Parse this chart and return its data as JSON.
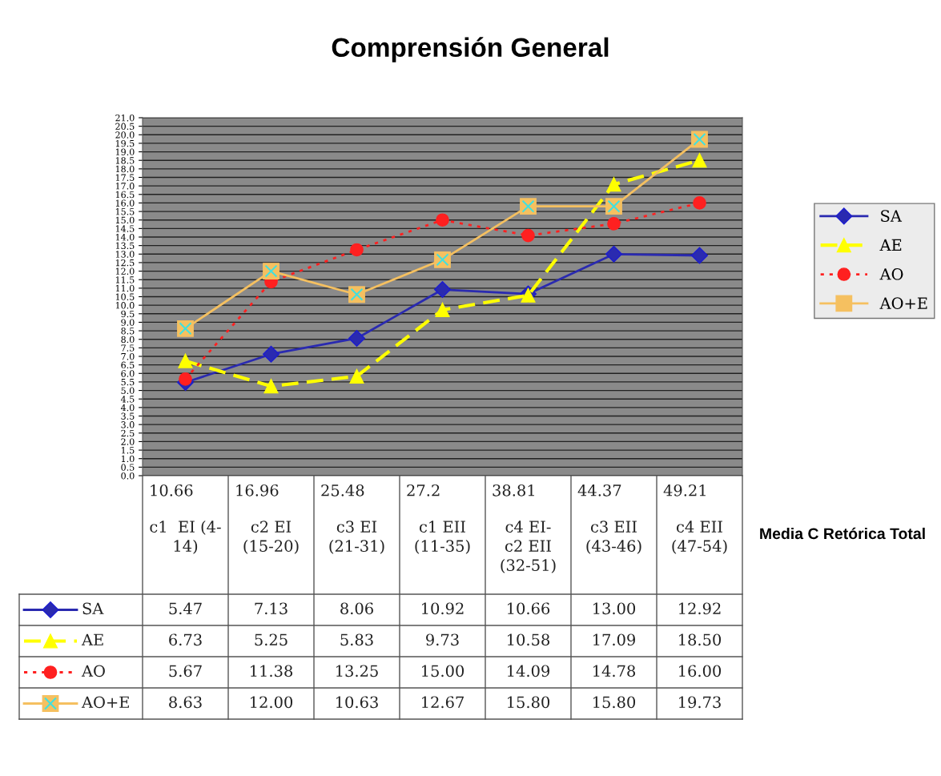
{
  "chart_data": {
    "type": "line",
    "title": "Comprensión General",
    "xlabel": "Media C Retórica Total",
    "categories": [
      "10.66\nc1  EI (4-\n14)",
      "16.96\nc2 EI\n(15-20)",
      "25.48\nc3 EI\n(21-31)",
      "27.2\nc1 EII\n(11-35)",
      "38.81\nc4 EI-\nc2 EII\n(32-51)",
      "44.37\nc3 EII\n(43-46)",
      "49.21\nc4 EII\n(47-54)"
    ],
    "series": [
      {
        "name": "SA",
        "color": "#2a2ab0",
        "marker": "diamond",
        "line_style": "solid",
        "values": [
          5.47,
          7.13,
          8.06,
          10.92,
          10.66,
          13.0,
          12.92
        ],
        "value_labels": [
          "5.47",
          "7.13",
          "8.06",
          "10.92",
          "10.66",
          "13.00",
          "12.92"
        ]
      },
      {
        "name": "AE",
        "color": "#ffff00",
        "marker": "triangle",
        "line_style": "dashed",
        "values": [
          6.73,
          5.25,
          5.83,
          9.73,
          10.58,
          17.09,
          18.5
        ],
        "value_labels": [
          "6.73",
          "5.25",
          "5.83",
          "9.73",
          "10.58",
          "17.09",
          "18.50"
        ]
      },
      {
        "name": "AO",
        "color": "#ff2020",
        "marker": "circle",
        "line_style": "dotted",
        "values": [
          5.67,
          11.38,
          13.25,
          15.0,
          14.09,
          14.78,
          16.0
        ],
        "value_labels": [
          "5.67",
          "11.38",
          "13.25",
          "15.00",
          "14.09",
          "14.78",
          "16.00"
        ]
      },
      {
        "name": "AO+E",
        "color": "#f5c060",
        "marker": "square",
        "line_style": "solid",
        "values": [
          8.63,
          12.0,
          10.63,
          12.67,
          15.8,
          15.8,
          19.73
        ],
        "value_labels": [
          "8.63",
          "12.00",
          "10.63",
          "12.67",
          "15.80",
          "15.80",
          "19.73"
        ]
      }
    ],
    "ylim": [
      0,
      21
    ],
    "yticks": [
      {
        "value": 0,
        "label": "0.0"
      },
      {
        "value": 0.5,
        "label": "0.5"
      },
      {
        "value": 1,
        "label": "1.0"
      },
      {
        "value": 1.5,
        "label": "1.5"
      },
      {
        "value": 2,
        "label": "2.0"
      },
      {
        "value": 2.5,
        "label": "2.5"
      },
      {
        "value": 3,
        "label": "3.0"
      },
      {
        "value": 3.5,
        "label": "3.5"
      },
      {
        "value": 4,
        "label": "4.0"
      },
      {
        "value": 4.5,
        "label": "4.5"
      },
      {
        "value": 5,
        "label": "5.0"
      },
      {
        "value": 5.5,
        "label": "5.5"
      },
      {
        "value": 6,
        "label": "6.0"
      },
      {
        "value": 6.5,
        "label": "6.5"
      },
      {
        "value": 7,
        "label": "7.0"
      },
      {
        "value": 7.5,
        "label": "7.5"
      },
      {
        "value": 8,
        "label": "8.0"
      },
      {
        "value": 8.5,
        "label": "8.5"
      },
      {
        "value": 9,
        "label": "9.0"
      },
      {
        "value": 9.5,
        "label": "9.5"
      },
      {
        "value": 10,
        "label": "10.0"
      },
      {
        "value": 10.5,
        "label": "10.5"
      },
      {
        "value": 11,
        "label": "11.0"
      },
      {
        "value": 11.5,
        "label": "11.5"
      },
      {
        "value": 12,
        "label": "12.0"
      },
      {
        "value": 12.5,
        "label": "12.5"
      },
      {
        "value": 13,
        "label": "13.0"
      },
      {
        "value": 13.5,
        "label": "13.5"
      },
      {
        "value": 14,
        "label": "14.0"
      },
      {
        "value": 14.5,
        "label": "14.5"
      },
      {
        "value": 15,
        "label": "15.0"
      },
      {
        "value": 15.5,
        "label": "15.5"
      },
      {
        "value": 16,
        "label": "16.0"
      },
      {
        "value": 16.5,
        "label": "16.5"
      },
      {
        "value": 17,
        "label": "17.0"
      },
      {
        "value": 17.5,
        "label": "17.5"
      },
      {
        "value": 18,
        "label": "18.0"
      },
      {
        "value": 18.5,
        "label": "18.5"
      },
      {
        "value": 19,
        "label": "19.0"
      },
      {
        "value": 19.5,
        "label": "19.5"
      },
      {
        "value": 20,
        "label": "20.0"
      },
      {
        "value": 20.5,
        "label": "20.5"
      },
      {
        "value": 21,
        "label": "21.0"
      }
    ],
    "grid": "y",
    "legend": "right"
  }
}
